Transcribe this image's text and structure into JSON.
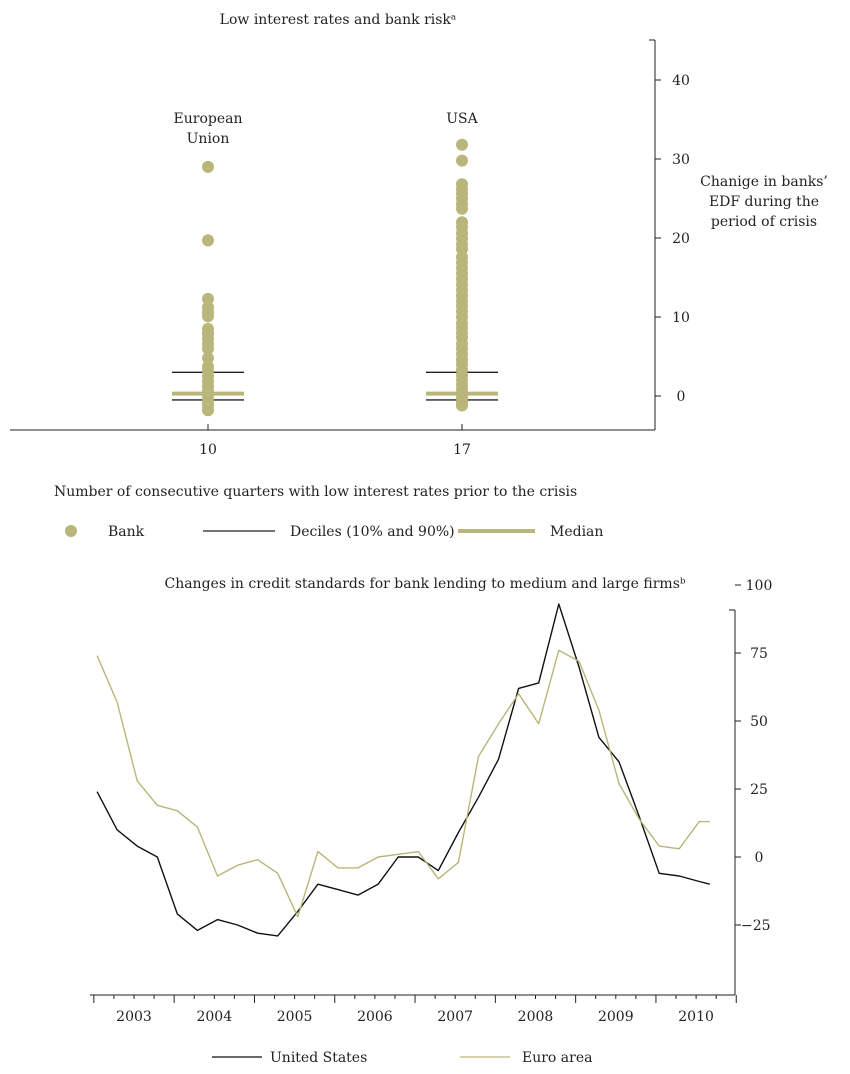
{
  "chart_data": [
    {
      "type": "scatter",
      "title": "Low interest rates and bank riskᵃ",
      "xlabel": "Number of consecutive quarters with low interest rates prior to the crisis",
      "ylabel": "Chanige in banks’ EDF during the period of crisis",
      "ylabel_lines": [
        "Chanige in banks’",
        "EDF during the",
        "period of crisis"
      ],
      "ylim": [
        -4,
        45
      ],
      "yticks": [
        0,
        10,
        20,
        30,
        40
      ],
      "categories": [
        "10",
        "17"
      ],
      "group_labels": [
        [
          "European",
          "Union"
        ],
        [
          "USA"
        ]
      ],
      "series": [
        {
          "name": "Bank",
          "points": [
            [
              29.0,
              19.7,
              12.3,
              11.2,
              10.6,
              10.1,
              8.5,
              7.9,
              7.3,
              6.6,
              6.0,
              4.8,
              3.7,
              3.2,
              2.5,
              1.8,
              1.2,
              0.6,
              0.1,
              -0.4,
              -0.9,
              -1.3,
              -1.8
            ],
            [
              31.8,
              29.8,
              26.8,
              26.2,
              25.6,
              25.0,
              24.3,
              23.7,
              22.0,
              21.4,
              20.6,
              19.9,
              19.2,
              18.6,
              17.6,
              16.9,
              16.2,
              15.5,
              14.8,
              14.1,
              13.4,
              12.7,
              12.0,
              11.4,
              10.7,
              10.0,
              9.2,
              8.6,
              8.0,
              7.4,
              6.6,
              6.0,
              5.3,
              4.6,
              4.0,
              3.3,
              2.6,
              2.0,
              1.4,
              0.8,
              0.2,
              -0.3,
              -0.8,
              -1.2
            ]
          ]
        }
      ],
      "deciles": [
        [
          -0.5,
          3.0
        ],
        [
          -0.5,
          3.0
        ]
      ],
      "medians": [
        0.3,
        0.3
      ],
      "legend": [
        "Bank",
        "Deciles (10% and 90%)",
        "Median"
      ],
      "colors": {
        "bank": "#b8b67a",
        "median": "#b8b67a",
        "deciles": "#222222"
      }
    },
    {
      "type": "line",
      "title": "Changes in credit standards for bank lending to medium and large firmsᵇ",
      "ylim": [
        -27,
        108
      ],
      "yticks": [
        -25,
        0,
        25,
        50,
        75,
        100
      ],
      "xticks": [
        "2003",
        "2004",
        "2005",
        "2006",
        "2007",
        "2008",
        "2009",
        "2010"
      ],
      "xlim": [
        2002.5,
        2010.5
      ],
      "series": [
        {
          "name": "United States",
          "color": "#111111",
          "x": [
            2002.54,
            2002.79,
            2003.04,
            2003.29,
            2003.54,
            2003.79,
            2004.04,
            2004.29,
            2004.54,
            2004.79,
            2005.04,
            2005.29,
            2005.54,
            2005.79,
            2006.04,
            2006.29,
            2006.54,
            2006.79,
            2007.04,
            2007.29,
            2007.54,
            2007.79,
            2008.04,
            2008.29,
            2008.54,
            2008.79,
            2009.04,
            2009.29,
            2009.54,
            2009.79,
            2010.04,
            2010.17
          ],
          "values": [
            24,
            10,
            4,
            0,
            -21,
            -27,
            -23,
            -25,
            -28,
            -29,
            -20,
            -10,
            -12,
            -14,
            -10,
            0,
            0,
            -5,
            9,
            22,
            36,
            62,
            64,
            93,
            70,
            44,
            35,
            15,
            -6,
            -7,
            -9,
            -10
          ]
        },
        {
          "name": "Euro area",
          "color": "#b8b67a",
          "x": [
            2002.54,
            2002.79,
            2003.04,
            2003.29,
            2003.54,
            2003.79,
            2004.04,
            2004.29,
            2004.54,
            2004.79,
            2005.04,
            2005.29,
            2005.54,
            2005.79,
            2006.04,
            2006.29,
            2006.54,
            2006.79,
            2007.04,
            2007.29,
            2007.54,
            2007.79,
            2008.04,
            2008.29,
            2008.54,
            2008.79,
            2009.04,
            2009.29,
            2009.54,
            2009.79,
            2010.04,
            2010.17
          ],
          "values": [
            74,
            57,
            28,
            19,
            17,
            11,
            -7,
            -3,
            -1,
            -6,
            -22,
            2,
            -4,
            -4,
            0,
            1,
            2,
            -8,
            -2,
            37,
            49,
            60,
            49,
            76,
            72,
            54,
            27,
            14,
            4,
            3,
            13,
            13
          ]
        }
      ],
      "legend": [
        "United States",
        "Euro area"
      ]
    }
  ]
}
